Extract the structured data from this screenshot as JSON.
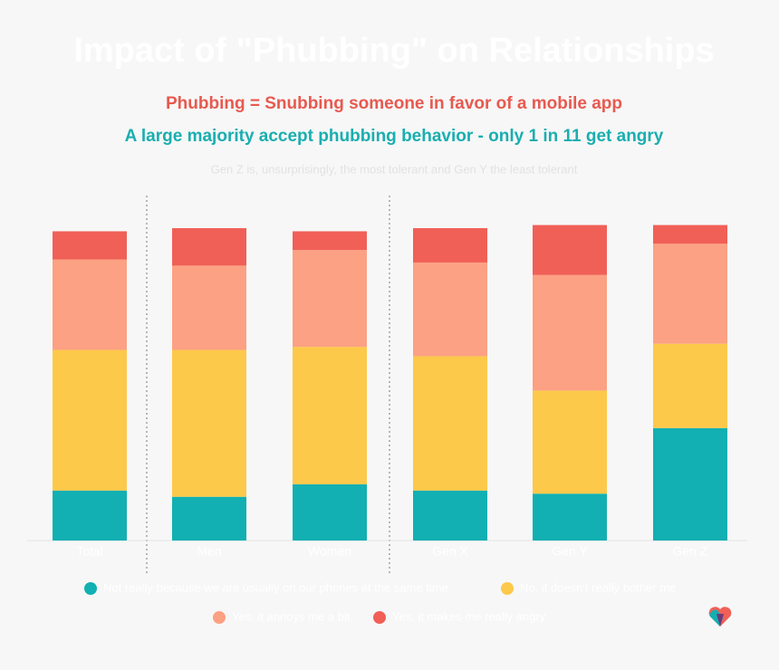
{
  "chart_data": {
    "type": "stacked-bar",
    "title": "Impact of \"Phubbing\" on Relationships",
    "subtitle": "Phubbing = Snubbing someone in favor of a mobile app",
    "headline": "A large majority accept phubbing behavior - only 1 in 11 get angry",
    "note": "Gen Z is, unsurprisingly, the most tolerant and Gen Y the least tolerant",
    "categories": [
      "Total",
      "Men",
      "Women",
      "Gen X",
      "Gen Y",
      "Gen Z"
    ],
    "series": [
      {
        "name": "Not really because we are usually on our phones at the same time",
        "color": "#12b0b2",
        "values": [
          16,
          14,
          18,
          16,
          15,
          36
        ]
      },
      {
        "name": "No, it doesn't really bother me",
        "color": "#fdc94a",
        "values": [
          45,
          47,
          44,
          43,
          33,
          27
        ]
      },
      {
        "name": "Yes, it annoys me a bit",
        "color": "#fca183",
        "values": [
          29,
          27,
          31,
          30,
          37,
          32
        ]
      },
      {
        "name": "Yes, it makes me really angry",
        "color": "#f06057",
        "values": [
          9,
          12,
          6,
          11,
          16,
          6
        ]
      }
    ]
  }
}
